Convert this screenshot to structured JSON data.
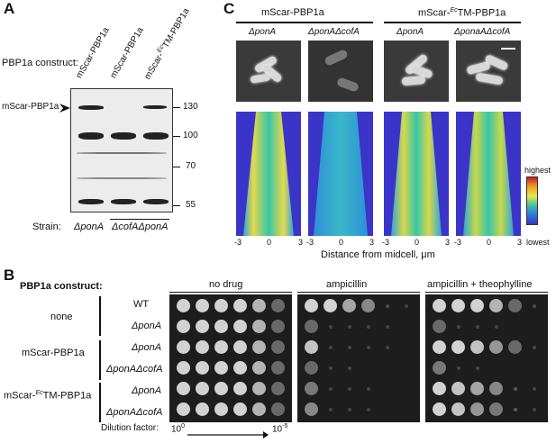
{
  "panelA": {
    "letter": "A",
    "construct_label": "PBP1a construct:",
    "lane_labels": [
      "mScar-PBP1a",
      "mScar-PBP1a",
      "mScar-",
      "TM-PBP1a"
    ],
    "lane_label_superscript": "Ec",
    "band_label": "mScar-PBP1a",
    "mw_markers": [
      "130",
      "100",
      "70",
      "55"
    ],
    "strain_label": "Strain:",
    "strain_1": "ΔponA",
    "strain_2": "ΔcofAΔponA"
  },
  "panelC": {
    "letter": "C",
    "group1": "mScar-PBP1a",
    "group2_prefix": "mScar-",
    "group2_sup": "Ec",
    "group2_suffix": "TM-PBP1a",
    "col_labels": [
      "ΔponA",
      "ΔponAΔcofA",
      "ΔponA",
      "ΔponaAΔcofA"
    ],
    "axis_ticks": [
      "-3",
      "0",
      "3"
    ],
    "xlabel": "Distance from midcell, μm",
    "scale_high": "highest",
    "scale_low": "lowest"
  },
  "panelB": {
    "letter": "B",
    "construct_header": "PBP1a construct:",
    "conditions": [
      "no drug",
      "ampicillin",
      "ampicillin + theophylline"
    ],
    "groups": [
      "none",
      "mScar-PBP1a",
      "mScar-",
      "TM-PBP1a"
    ],
    "group_sup": "Ec",
    "rows": [
      "WT",
      "ΔponA",
      "ΔponA",
      "ΔponAΔcofA",
      "ΔponA",
      "ΔponAΔcofA"
    ],
    "dilution_label": "Dilution factor:",
    "dilution_start": "10",
    "dilution_start_exp": "0",
    "dilution_end": "10",
    "dilution_end_exp": "-5",
    "growth": {
      "no_drug": [
        [
          1,
          1,
          1,
          1,
          0.8,
          0.3
        ],
        [
          1,
          1,
          1,
          1,
          0.8,
          0.3
        ],
        [
          1,
          1,
          1,
          1,
          0.8,
          0.3
        ],
        [
          1,
          1,
          1,
          1,
          0.8,
          0.3
        ],
        [
          1,
          1,
          1,
          1,
          0.8,
          0.3
        ],
        [
          1,
          1,
          1,
          1,
          0.8,
          0.3
        ]
      ],
      "ampicillin": [
        [
          1,
          1,
          0.7,
          0.5,
          0.1,
          0.05
        ],
        [
          0.3,
          0.05,
          0.05,
          0.05,
          0.05,
          0
        ],
        [
          0.9,
          0.05,
          0.05,
          0.05,
          0.05,
          0
        ],
        [
          0.3,
          0.05,
          0.05,
          0,
          0,
          0
        ],
        [
          0.4,
          0.05,
          0.05,
          0.05,
          0,
          0
        ],
        [
          0.5,
          0.05,
          0.05,
          0.05,
          0,
          0
        ]
      ],
      "ampicillin_theophylline": [
        [
          1,
          1,
          1,
          0.8,
          0.3,
          0.1
        ],
        [
          0.3,
          0.05,
          0.05,
          0.05,
          0,
          0
        ],
        [
          1,
          1,
          0.9,
          0.6,
          0.3,
          0.1
        ],
        [
          0.4,
          0.05,
          0.05,
          0,
          0,
          0
        ],
        [
          1,
          0.9,
          0.7,
          0.5,
          0.2,
          0.05
        ],
        [
          1,
          0.9,
          0.6,
          0.4,
          0.2,
          0.05
        ]
      ]
    }
  }
}
